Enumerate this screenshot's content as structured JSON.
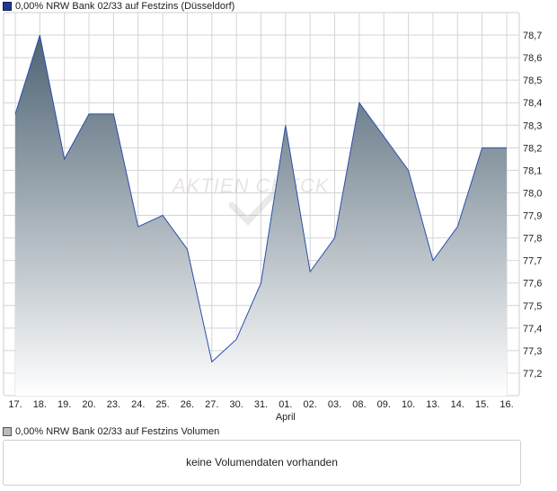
{
  "legend": {
    "price": "0,00% NRW Bank 02/33 auf Festzins (Düsseldorf)",
    "volume": "0,00% NRW Bank 02/33 auf Festzins Volumen"
  },
  "watermark": "AKTIEN CHECK",
  "volume_message": "keine Volumendaten vorhanden",
  "colors": {
    "line": "#2b4fa8",
    "fill_top": "#4e6373",
    "fill_bottom": "#ffffff",
    "grid": "#d4d4d4"
  },
  "chart_data": {
    "type": "area",
    "categories": [
      "17.",
      "18.",
      "19.",
      "20.",
      "23.",
      "24.",
      "25.",
      "26.",
      "27.",
      "30.",
      "31.",
      "01.",
      "02.",
      "03.",
      "08.",
      "09.",
      "10.",
      "13.",
      "14.",
      "15.",
      "16."
    ],
    "month_label": {
      "text": "April",
      "at": "01."
    },
    "series": [
      {
        "values": [
          78.35,
          78.7,
          78.15,
          78.35,
          78.35,
          77.85,
          77.9,
          77.75,
          77.25,
          77.35,
          77.6,
          78.3,
          77.65,
          77.8,
          78.4,
          78.25,
          78.1,
          77.7,
          77.85,
          78.2,
          78.2
        ]
      }
    ],
    "y_ticks": [
      "77,2",
      "77,3",
      "77,4",
      "77,5",
      "77,6",
      "77,7",
      "77,8",
      "77,9",
      "78,0",
      "78,1",
      "78,2",
      "78,3",
      "78,4",
      "78,5",
      "78,6",
      "78,7"
    ],
    "ylim": [
      77.1,
      78.8
    ],
    "grid": true,
    "y_axis_position": "right"
  }
}
